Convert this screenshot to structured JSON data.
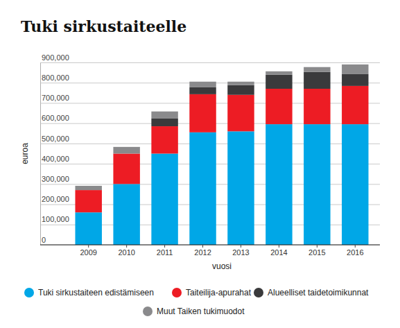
{
  "chart_data": {
    "type": "bar",
    "stacked": true,
    "grid": true,
    "legend": "bottom",
    "title": "Tuki sirkustaiteelle",
    "x_label": "vuosi",
    "y_label": "euroa",
    "categories": [
      "2009",
      "2010",
      "2011",
      "2012",
      "2013",
      "2014",
      "2015",
      "2016"
    ],
    "ylim": [
      0,
      900000
    ],
    "yticks": [
      0,
      {
        "value": 100000,
        "label": "100,000"
      },
      {
        "value": 200000,
        "label": "200,000"
      },
      {
        "value": 300000,
        "label": "300,000"
      },
      {
        "value": 400000,
        "label": "400,000"
      },
      {
        "value": 500000,
        "label": "500,000"
      },
      {
        "value": 600000,
        "label": "600,000"
      },
      {
        "value": 700000,
        "label": "700,000"
      },
      {
        "value": 800000,
        "label": "800,000"
      },
      {
        "value": 900000,
        "label": "900,000"
      }
    ],
    "series": [
      {
        "name": "Tuki sirkustaiteen edistämiseen",
        "color": "#00a7e7",
        "values": [
          160000,
          300000,
          450000,
          555000,
          560000,
          595000,
          595000,
          595000
        ]
      },
      {
        "name": "Taiteilija-apurahat",
        "color": "#ed1c24",
        "values": [
          110000,
          150000,
          135000,
          188000,
          180000,
          175000,
          175000,
          189000
        ]
      },
      {
        "name": "Alueelliset taidetoimikunnat",
        "color": "#3a3a3c",
        "values": [
          0,
          0,
          38000,
          34000,
          48000,
          69000,
          83000,
          58000
        ]
      },
      {
        "name": "Muut Taiken tukimuodot",
        "color": "#8a8a8c",
        "values": [
          21000,
          33000,
          35000,
          28000,
          17000,
          17000,
          24000,
          48000
        ]
      }
    ]
  }
}
